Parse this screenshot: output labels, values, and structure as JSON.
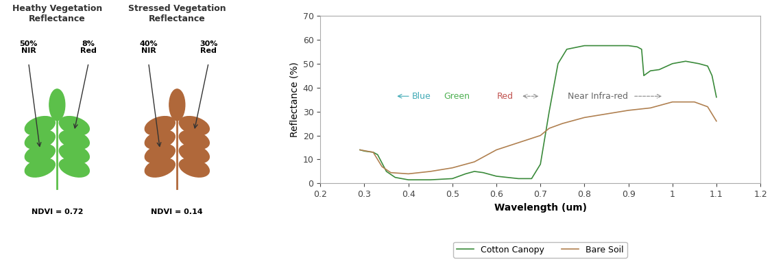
{
  "chart_data": {
    "type": "line",
    "x_label": "Wavelength (um)",
    "y_label": "Reflectance (%)",
    "xlim": [
      0.2,
      1.2
    ],
    "xticks": [
      0.2,
      0.3,
      0.4,
      0.5,
      0.6,
      0.7,
      0.8,
      0.9,
      1,
      1.1,
      1.2
    ],
    "ylim": [
      0,
      70
    ],
    "yticks": [
      0,
      10,
      20,
      30,
      40,
      50,
      60,
      70
    ],
    "grid": false,
    "legend": "lower center",
    "series": [
      {
        "name": "Cotton Canopy",
        "color": "#3a8a3a",
        "x": [
          0.29,
          0.3,
          0.32,
          0.33,
          0.35,
          0.37,
          0.4,
          0.45,
          0.5,
          0.53,
          0.55,
          0.57,
          0.6,
          0.65,
          0.68,
          0.7,
          0.72,
          0.74,
          0.76,
          0.8,
          0.85,
          0.9,
          0.92,
          0.93,
          0.935,
          0.95,
          0.97,
          1.0,
          1.03,
          1.06,
          1.08,
          1.09,
          1.1
        ],
        "values": [
          14,
          13.5,
          13,
          12,
          5,
          2.5,
          1.5,
          1.5,
          2,
          4,
          5,
          4.5,
          3,
          2,
          2,
          8,
          30,
          50,
          56,
          57.5,
          57.5,
          57.5,
          57,
          56,
          45,
          47,
          47.5,
          50,
          51,
          50,
          49,
          45,
          36
        ]
      },
      {
        "name": "Bare Soil",
        "color": "#b08050",
        "x": [
          0.29,
          0.32,
          0.34,
          0.36,
          0.4,
          0.45,
          0.5,
          0.55,
          0.6,
          0.65,
          0.7,
          0.72,
          0.75,
          0.8,
          0.85,
          0.9,
          0.95,
          1.0,
          1.05,
          1.08,
          1.1
        ],
        "values": [
          14,
          13,
          7,
          4.5,
          4,
          5,
          6.5,
          9,
          14,
          17,
          20,
          23,
          25,
          27.5,
          29,
          30.5,
          31.5,
          34,
          34,
          32,
          26
        ]
      }
    ],
    "annotations": [
      {
        "text": "Blue",
        "color": "#3fa9b5"
      },
      {
        "text": "Green",
        "color": "#4caf50"
      },
      {
        "text": "Red",
        "color": "#c0504d"
      },
      {
        "text": "Near Infra-red",
        "color": "#666666"
      }
    ]
  },
  "illustrations": [
    {
      "title": "Heathy Vegetation\nReflectance",
      "color": "#5cc04a",
      "nir_value": "50%",
      "nir_band": "NIR",
      "red_value": "8%",
      "red_band": "Red",
      "ndvi": "NDVI = 0.72"
    },
    {
      "title": "Stressed Vegetation\nReflectance",
      "color": "#b0683a",
      "nir_value": "40%",
      "nir_band": "NIR",
      "red_value": "30%",
      "red_band": "Red",
      "ndvi": "NDVI = 0.14"
    }
  ]
}
